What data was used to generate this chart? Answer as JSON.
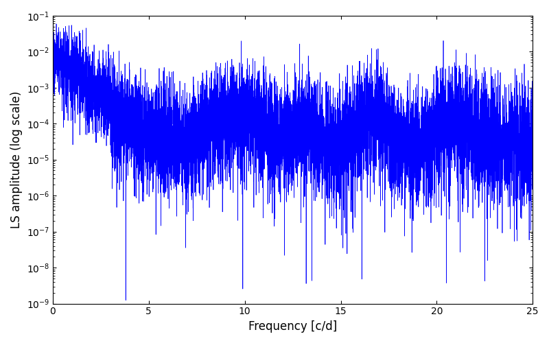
{
  "xlabel": "Frequency [c/d]",
  "ylabel": "LS amplitude (log scale)",
  "xlim": [
    0,
    25
  ],
  "ylim": [
    1e-09,
    0.1
  ],
  "line_color": "#0000FF",
  "line_width": 0.5,
  "yscale": "log",
  "figsize": [
    8.0,
    5.0
  ],
  "dpi": 100,
  "bg_color": "#ffffff",
  "freq_max": 25.0,
  "n_points": 6000,
  "seed": 7
}
